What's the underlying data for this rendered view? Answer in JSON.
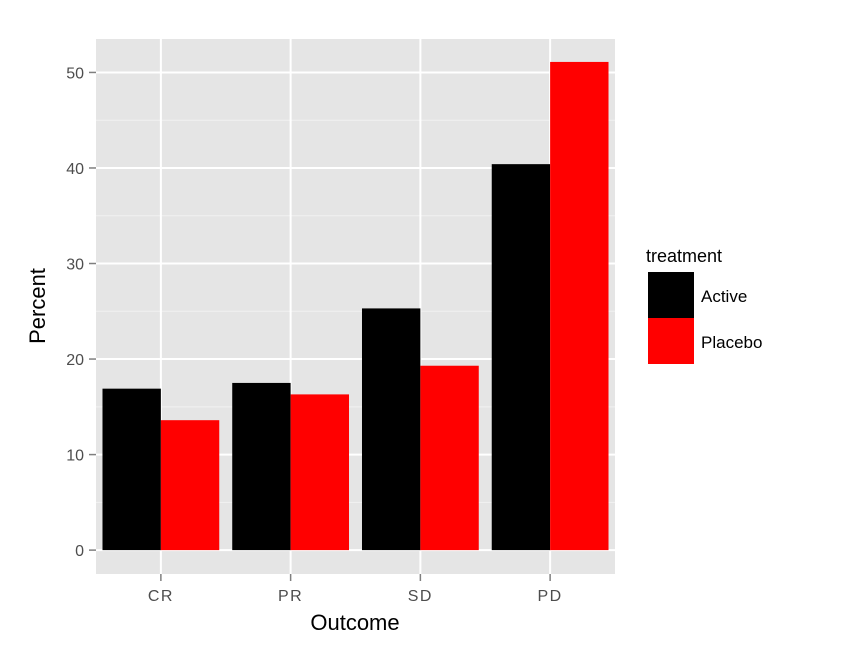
{
  "chart_data": {
    "type": "bar",
    "categories": [
      "CR",
      "PR",
      "SD",
      "PD"
    ],
    "series": [
      {
        "name": "Active",
        "values": [
          16.9,
          17.5,
          25.3,
          40.4
        ],
        "color": "#000000"
      },
      {
        "name": "Placebo",
        "values": [
          13.6,
          16.3,
          19.3,
          51.1
        ],
        "color": "#ff0000"
      }
    ],
    "xlabel": "Outcome",
    "ylabel": "Percent",
    "ylim": [
      -2.5,
      53.5
    ],
    "yticks": [
      "0",
      "10",
      "20",
      "30",
      "40",
      "50"
    ],
    "legend": {
      "title": "treatment",
      "position": "right"
    },
    "grid": true,
    "panel_background": "#e5e5e5",
    "grid_color": "#ffffff"
  }
}
